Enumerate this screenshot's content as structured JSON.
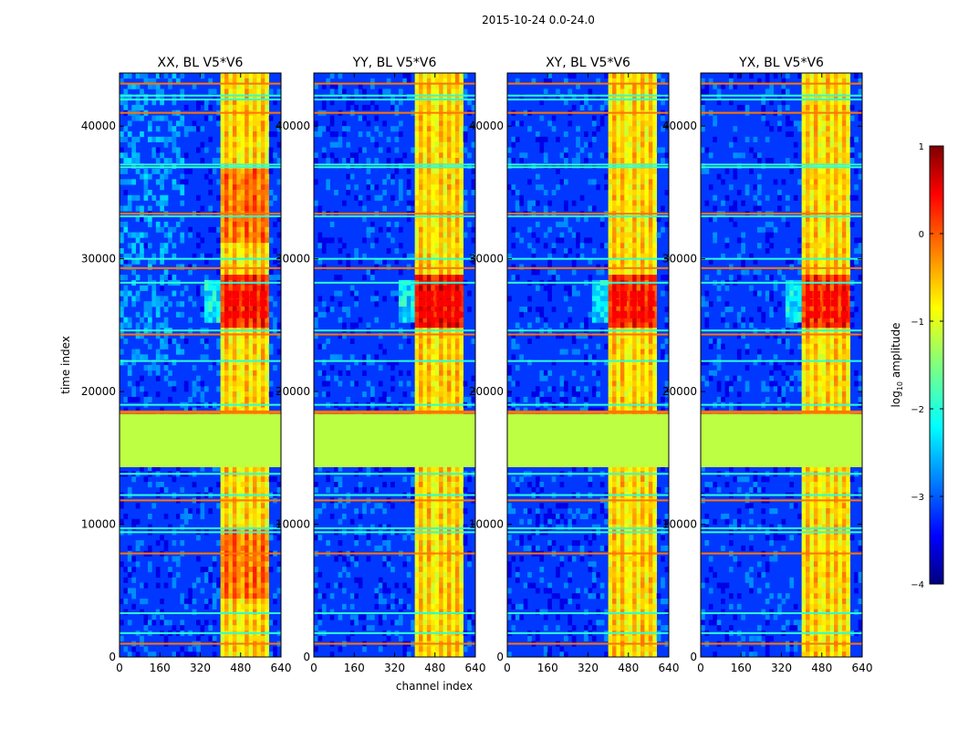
{
  "chart_data": {
    "type": "heatmap",
    "suptitle": "2015-10-24 0.0-24.0",
    "xlabel": "channel index",
    "ylabel": "time index",
    "xlim": [
      0,
      640
    ],
    "ylim": [
      0,
      44000
    ],
    "xticks": [
      0,
      160,
      320,
      480,
      640
    ],
    "yticks": [
      0,
      10000,
      20000,
      30000,
      40000
    ],
    "colormap": "jet",
    "colorbar": {
      "label": "log10 amplitude",
      "label_base": "log",
      "label_sub": "10",
      "label_rest": " amplitude",
      "range": [
        -4,
        1
      ],
      "ticks": [
        1,
        0,
        -1,
        -2,
        -3,
        -4
      ]
    },
    "panels": [
      {
        "title": "XX, BL V5*V6",
        "polarization": "XX",
        "baseline": "V5*V6"
      },
      {
        "title": "YY, BL V5*V6",
        "polarization": "YY",
        "baseline": "V5*V6"
      },
      {
        "title": "XY, BL V5*V6",
        "polarization": "XY",
        "baseline": "V5*V6"
      },
      {
        "title": "YX, BL V5*V6",
        "polarization": "YX",
        "baseline": "V5*V6"
      }
    ],
    "features": {
      "background_level": -3.1,
      "flagged_block": {
        "time_range": [
          14300,
          18300
        ],
        "value": -1.2
      },
      "rfi_channel_band": {
        "channel_range": [
          405,
          592
        ],
        "value": -0.9
      },
      "bright_channel_columns": [
        430,
        460,
        500,
        530,
        570
      ],
      "strong_rfi_times": [
        25800,
        26700,
        27300
      ],
      "horizontal_flag_lines": [
        1000,
        1800,
        3300,
        7800,
        9400,
        9700,
        11800,
        12200,
        13800,
        18500,
        19000,
        22300,
        24300,
        24600,
        28200,
        29300,
        30000,
        33200,
        33400,
        36900,
        37100,
        41000,
        42000,
        42300,
        43200
      ]
    }
  }
}
